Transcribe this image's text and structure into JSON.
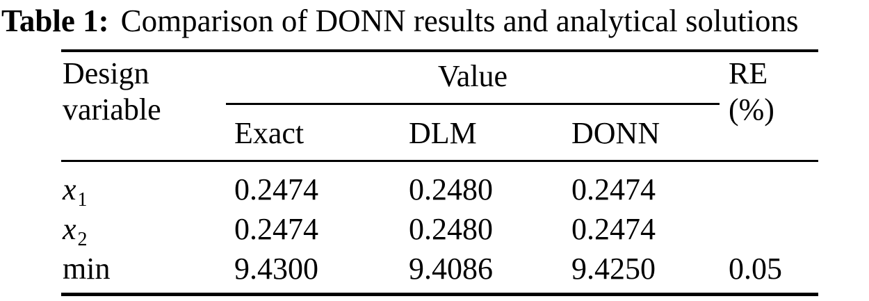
{
  "caption": {
    "label": "Table 1:",
    "text": "Comparison of DONN results and analytical solutions"
  },
  "table": {
    "header": {
      "design_line1": "Design",
      "design_line2": "variable",
      "value_group_label": "Value",
      "sub_columns": {
        "exact": "Exact",
        "dlm": "DLM",
        "donn": "DONN"
      },
      "re_line1": "RE",
      "re_line2": "(%)"
    },
    "rows": [
      {
        "var_base": "x",
        "var_sub": "1",
        "exact": "0.2474",
        "dlm": "0.2480",
        "donn": "0.2474",
        "re": ""
      },
      {
        "var_base": "x",
        "var_sub": "2",
        "exact": "0.2474",
        "dlm": "0.2480",
        "donn": "0.2474",
        "re": ""
      },
      {
        "var_base": "min",
        "var_sub": "",
        "exact": "9.4300",
        "dlm": "9.4086",
        "donn": "9.4250",
        "re": "0.05"
      }
    ],
    "colors": {
      "text": "#000000",
      "background": "#ffffff",
      "rule": "#000000"
    }
  }
}
